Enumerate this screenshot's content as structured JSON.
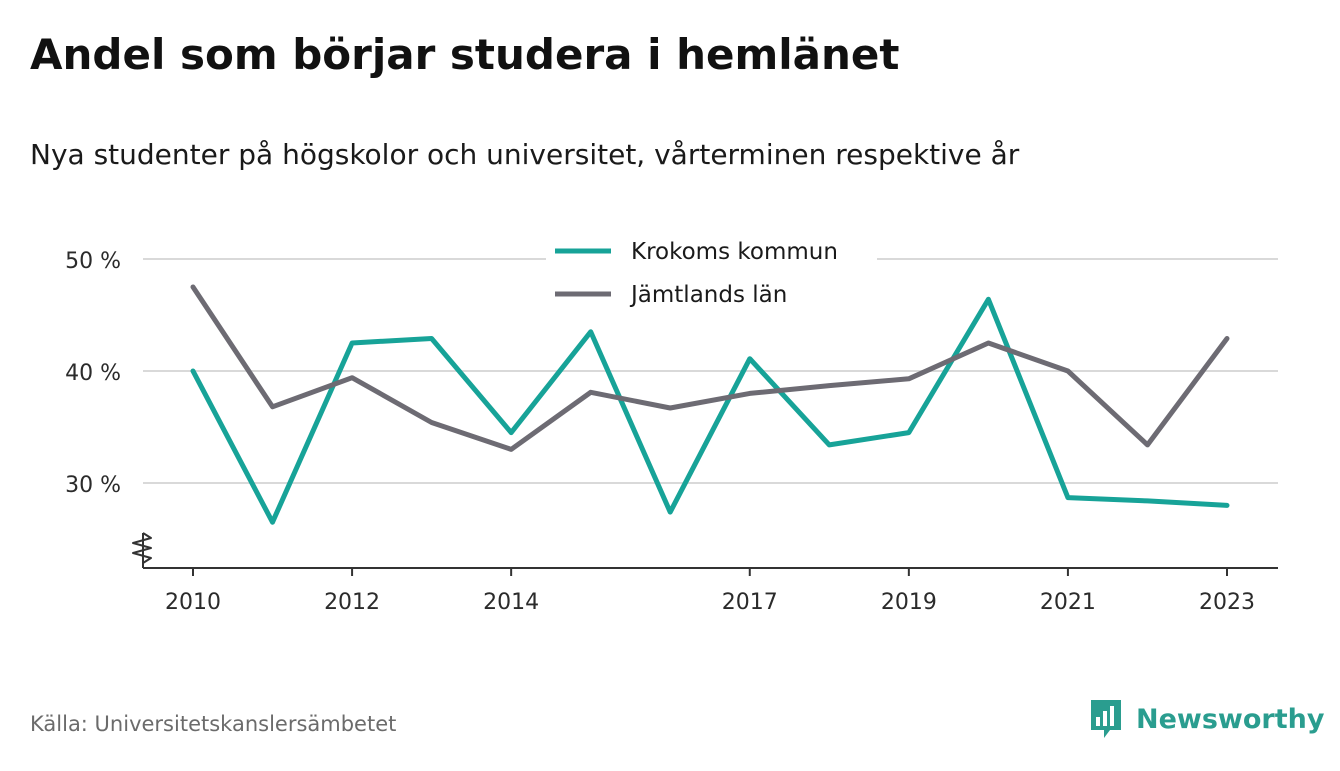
{
  "header": {
    "title": "Andel som börjar studera i hemlänet",
    "subtitle": "Nya studenter på högskolor och universitet, vårterminen respektive år"
  },
  "footer": {
    "source": "Källa: Universitetskanslersämbetet",
    "brand": "Newsworthy"
  },
  "colors": {
    "series_krokom": "#17a398",
    "series_jamtland": "#6d6b73",
    "grid": "#d9d9d9",
    "axis": "#333333",
    "brand": "#2a9d8f"
  },
  "chart_data": {
    "type": "line",
    "title": "Andel som börjar studera i hemlänet",
    "subtitle": "Nya studenter på högskolor och universitet, vårterminen respektive år",
    "xlabel": "",
    "ylabel": "",
    "x": [
      2010,
      2011,
      2012,
      2013,
      2014,
      2015,
      2016,
      2017,
      2018,
      2019,
      2020,
      2021,
      2022,
      2023
    ],
    "x_tick_labels": [
      "2010",
      "2012",
      "2014",
      "2017",
      "2019",
      "2021",
      "2023"
    ],
    "y_ticks": [
      30,
      40,
      50
    ],
    "y_tick_labels": [
      "30 %",
      "40 %",
      "50 %"
    ],
    "ylim": [
      22.5,
      50
    ],
    "y_axis_break": true,
    "grid": true,
    "legend_position": "top-center",
    "series": [
      {
        "name": "Krokoms kommun",
        "color": "#17a398",
        "values": [
          40.0,
          26.5,
          42.5,
          42.9,
          34.5,
          43.5,
          27.4,
          41.1,
          33.4,
          34.5,
          46.4,
          28.7,
          28.4,
          28.0
        ]
      },
      {
        "name": "Jämtlands län",
        "color": "#6d6b73",
        "values": [
          47.5,
          36.8,
          39.4,
          35.4,
          33.0,
          38.1,
          36.7,
          38.0,
          38.7,
          39.3,
          42.5,
          40.0,
          33.4,
          42.9
        ]
      }
    ]
  }
}
